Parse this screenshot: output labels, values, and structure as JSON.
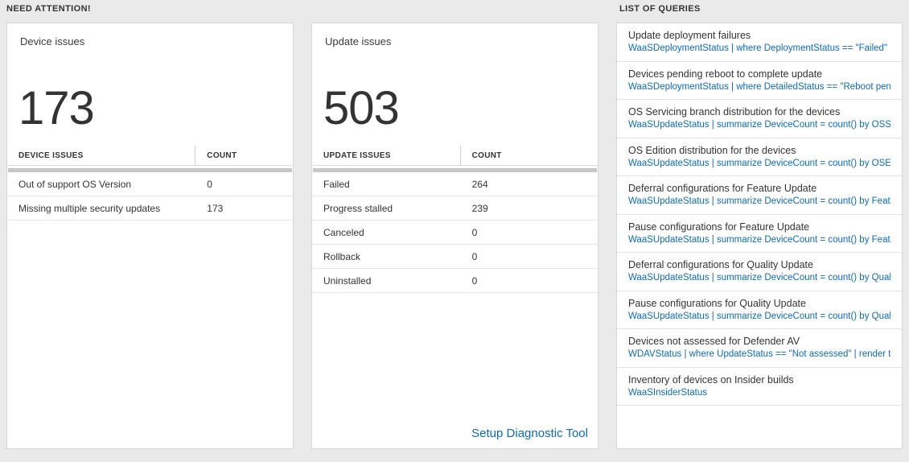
{
  "colors": {
    "page_bg": "#eaeaea",
    "card_border": "#d6d6d6",
    "link_blue": "#0b6bbd",
    "text_dark": "#333333",
    "scrollbar_gray": "#c7c7c7"
  },
  "attention": {
    "title": "NEED ATTENTION!",
    "cards": [
      {
        "title": "Device issues",
        "count": "173",
        "table": {
          "headers": [
            "DEVICE ISSUES",
            "COUNT"
          ],
          "rows": [
            {
              "label": "Out of support OS Version",
              "count": "0"
            },
            {
              "label": "Missing multiple security updates",
              "count": "173"
            }
          ]
        }
      },
      {
        "title": "Update issues",
        "count": "503",
        "table": {
          "headers": [
            "UPDATE ISSUES",
            "COUNT"
          ],
          "rows": [
            {
              "label": "Failed",
              "count": "264"
            },
            {
              "label": "Progress stalled",
              "count": "239"
            },
            {
              "label": "Canceled",
              "count": "0"
            },
            {
              "label": "Rollback",
              "count": "0"
            },
            {
              "label": "Uninstalled",
              "count": "0"
            }
          ]
        },
        "footer_link": "Setup Diagnostic Tool"
      }
    ]
  },
  "queries": {
    "title": "LIST OF QUERIES",
    "items": [
      {
        "title": "Update deployment failures",
        "query": "WaaSDeploymentStatus | where DeploymentStatus == \"Failed\" |..."
      },
      {
        "title": "Devices pending reboot to complete update",
        "query": "WaaSDeploymentStatus | where DetailedStatus == \"Reboot pend..."
      },
      {
        "title": "OS Servicing branch distribution for the devices",
        "query": "WaaSUpdateStatus | summarize DeviceCount = count() by OSSer..."
      },
      {
        "title": "OS Edition distribution for the devices",
        "query": "WaaSUpdateStatus | summarize DeviceCount = count() by OSEdit..."
      },
      {
        "title": "Deferral configurations for Feature Update",
        "query": "WaaSUpdateStatus | summarize DeviceCount = count() by Featur..."
      },
      {
        "title": "Pause configurations for Feature Update",
        "query": "WaaSUpdateStatus | summarize DeviceCount = count() by Featur..."
      },
      {
        "title": "Deferral configurations for Quality Update",
        "query": "WaaSUpdateStatus | summarize DeviceCount = count() by Qualit..."
      },
      {
        "title": "Pause configurations for Quality Update",
        "query": "WaaSUpdateStatus | summarize DeviceCount = count() by Qualit..."
      },
      {
        "title": "Devices not assessed for Defender AV",
        "query": "WDAVStatus | where UpdateStatus == \"Not assessed\" | render ta..."
      },
      {
        "title": "Inventory of devices on Insider builds",
        "query": "WaaSInsiderStatus"
      }
    ]
  }
}
